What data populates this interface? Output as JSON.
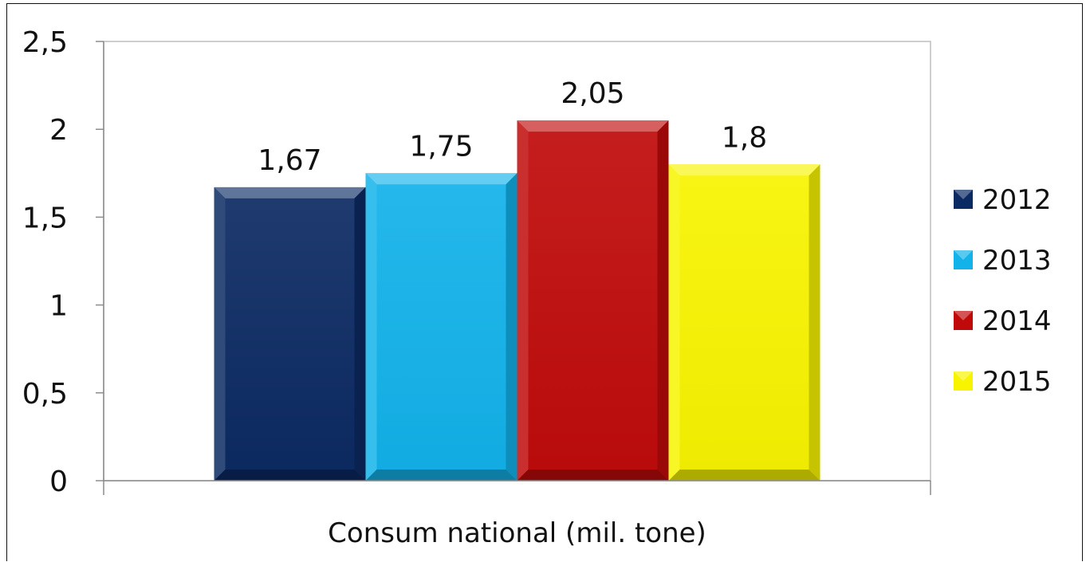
{
  "chart_data": {
    "type": "bar",
    "title": "",
    "xlabel": "",
    "ylabel": "",
    "categories": [
      "Consum national (mil. tone)"
    ],
    "series": [
      {
        "name": "2012",
        "values": [
          1.67
        ],
        "label": "1,67",
        "color": "#0b2a63"
      },
      {
        "name": "2013",
        "values": [
          1.75
        ],
        "label": "1,75",
        "color": "#12b2ea"
      },
      {
        "name": "2014",
        "values": [
          2.05
        ],
        "label": "2,05",
        "color": "#c00a0a"
      },
      {
        "name": "2015",
        "values": [
          1.8
        ],
        "label": "1,8",
        "color": "#f8f400"
      }
    ],
    "ylim": [
      0,
      2.5
    ],
    "yticks": [
      {
        "value": 0,
        "label": "0"
      },
      {
        "value": 0.5,
        "label": "0,5"
      },
      {
        "value": 1,
        "label": "1"
      },
      {
        "value": 1.5,
        "label": "1,5"
      },
      {
        "value": 2,
        "label": "2"
      },
      {
        "value": 2.5,
        "label": "2,5"
      }
    ],
    "grid": false,
    "legend": "right"
  }
}
